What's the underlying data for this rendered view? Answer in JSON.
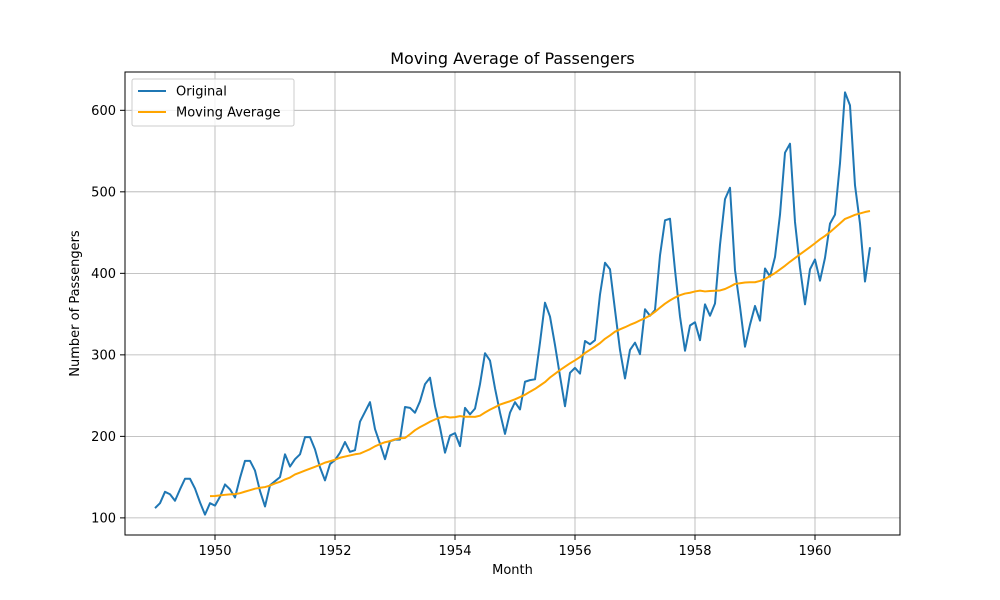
{
  "chart_data": {
    "type": "line",
    "title": "Moving Average of Passengers",
    "xlabel": "Month",
    "ylabel": "Number of Passengers",
    "x_axis": {
      "start": "1949-01",
      "end": "1960-12",
      "ticks": [
        "1950",
        "1952",
        "1954",
        "1956",
        "1958",
        "1960"
      ],
      "range": [
        "1948-07",
        "1961-06"
      ]
    },
    "y_axis": {
      "ticks": [
        100,
        200,
        300,
        400,
        500,
        600
      ],
      "range": [
        79,
        647
      ]
    },
    "grid": true,
    "legend": {
      "position": "top-left"
    },
    "series": [
      {
        "name": "Original",
        "color": "#1f77b4",
        "x": [
          "1949-01",
          "1949-02",
          "1949-03",
          "1949-04",
          "1949-05",
          "1949-06",
          "1949-07",
          "1949-08",
          "1949-09",
          "1949-10",
          "1949-11",
          "1949-12",
          "1950-01",
          "1950-02",
          "1950-03",
          "1950-04",
          "1950-05",
          "1950-06",
          "1950-07",
          "1950-08",
          "1950-09",
          "1950-10",
          "1950-11",
          "1950-12",
          "1951-01",
          "1951-02",
          "1951-03",
          "1951-04",
          "1951-05",
          "1951-06",
          "1951-07",
          "1951-08",
          "1951-09",
          "1951-10",
          "1951-11",
          "1951-12",
          "1952-01",
          "1952-02",
          "1952-03",
          "1952-04",
          "1952-05",
          "1952-06",
          "1952-07",
          "1952-08",
          "1952-09",
          "1952-10",
          "1952-11",
          "1952-12",
          "1953-01",
          "1953-02",
          "1953-03",
          "1953-04",
          "1953-05",
          "1953-06",
          "1953-07",
          "1953-08",
          "1953-09",
          "1953-10",
          "1953-11",
          "1953-12",
          "1954-01",
          "1954-02",
          "1954-03",
          "1954-04",
          "1954-05",
          "1954-06",
          "1954-07",
          "1954-08",
          "1954-09",
          "1954-10",
          "1954-11",
          "1954-12",
          "1955-01",
          "1955-02",
          "1955-03",
          "1955-04",
          "1955-05",
          "1955-06",
          "1955-07",
          "1955-08",
          "1955-09",
          "1955-10",
          "1955-11",
          "1955-12",
          "1956-01",
          "1956-02",
          "1956-03",
          "1956-04",
          "1956-05",
          "1956-06",
          "1956-07",
          "1956-08",
          "1956-09",
          "1956-10",
          "1956-11",
          "1956-12",
          "1957-01",
          "1957-02",
          "1957-03",
          "1957-04",
          "1957-05",
          "1957-06",
          "1957-07",
          "1957-08",
          "1957-09",
          "1957-10",
          "1957-11",
          "1957-12",
          "1958-01",
          "1958-02",
          "1958-03",
          "1958-04",
          "1958-05",
          "1958-06",
          "1958-07",
          "1958-08",
          "1958-09",
          "1958-10",
          "1958-11",
          "1958-12",
          "1959-01",
          "1959-02",
          "1959-03",
          "1959-04",
          "1959-05",
          "1959-06",
          "1959-07",
          "1959-08",
          "1959-09",
          "1959-10",
          "1959-11",
          "1959-12",
          "1960-01",
          "1960-02",
          "1960-03",
          "1960-04",
          "1960-05",
          "1960-06",
          "1960-07",
          "1960-08",
          "1960-09",
          "1960-10",
          "1960-11",
          "1960-12"
        ],
        "values": [
          112,
          118,
          132,
          129,
          121,
          135,
          148,
          148,
          136,
          119,
          104,
          118,
          115,
          126,
          141,
          135,
          125,
          149,
          170,
          170,
          158,
          133,
          114,
          140,
          145,
          150,
          178,
          163,
          172,
          178,
          199,
          199,
          184,
          162,
          146,
          166,
          171,
          180,
          193,
          181,
          183,
          218,
          230,
          242,
          209,
          191,
          172,
          194,
          196,
          196,
          236,
          235,
          229,
          243,
          264,
          272,
          237,
          211,
          180,
          201,
          204,
          188,
          235,
          227,
          234,
          264,
          302,
          293,
          259,
          229,
          203,
          229,
          242,
          233,
          267,
          269,
          270,
          315,
          364,
          347,
          312,
          274,
          237,
          278,
          284,
          277,
          317,
          313,
          318,
          374,
          413,
          405,
          355,
          306,
          271,
          306,
          315,
          301,
          356,
          348,
          355,
          422,
          465,
          467,
          404,
          347,
          305,
          336,
          340,
          318,
          362,
          348,
          363,
          435,
          491,
          505,
          404,
          359,
          310,
          337,
          360,
          342,
          406,
          396,
          420,
          472,
          548,
          559,
          463,
          407,
          362,
          405,
          417,
          391,
          419,
          461,
          472,
          535,
          622,
          606,
          508,
          461,
          390,
          432
        ]
      },
      {
        "name": "Moving Average",
        "color": "#ffa500",
        "x": [
          "1949-12",
          "1950-01",
          "1950-02",
          "1950-03",
          "1950-04",
          "1950-05",
          "1950-06",
          "1950-07",
          "1950-08",
          "1950-09",
          "1950-10",
          "1950-11",
          "1950-12",
          "1951-01",
          "1951-02",
          "1951-03",
          "1951-04",
          "1951-05",
          "1951-06",
          "1951-07",
          "1951-08",
          "1951-09",
          "1951-10",
          "1951-11",
          "1951-12",
          "1952-01",
          "1952-02",
          "1952-03",
          "1952-04",
          "1952-05",
          "1952-06",
          "1952-07",
          "1952-08",
          "1952-09",
          "1952-10",
          "1952-11",
          "1952-12",
          "1953-01",
          "1953-02",
          "1953-03",
          "1953-04",
          "1953-05",
          "1953-06",
          "1953-07",
          "1953-08",
          "1953-09",
          "1953-10",
          "1953-11",
          "1953-12",
          "1954-01",
          "1954-02",
          "1954-03",
          "1954-04",
          "1954-05",
          "1954-06",
          "1954-07",
          "1954-08",
          "1954-09",
          "1954-10",
          "1954-11",
          "1954-12",
          "1955-01",
          "1955-02",
          "1955-03",
          "1955-04",
          "1955-05",
          "1955-06",
          "1955-07",
          "1955-08",
          "1955-09",
          "1955-10",
          "1955-11",
          "1955-12",
          "1956-01",
          "1956-02",
          "1956-03",
          "1956-04",
          "1956-05",
          "1956-06",
          "1956-07",
          "1956-08",
          "1956-09",
          "1956-10",
          "1956-11",
          "1956-12",
          "1957-01",
          "1957-02",
          "1957-03",
          "1957-04",
          "1957-05",
          "1957-06",
          "1957-07",
          "1957-08",
          "1957-09",
          "1957-10",
          "1957-11",
          "1957-12",
          "1958-01",
          "1958-02",
          "1958-03",
          "1958-04",
          "1958-05",
          "1958-06",
          "1958-07",
          "1958-08",
          "1958-09",
          "1958-10",
          "1958-11",
          "1958-12",
          "1959-01",
          "1959-02",
          "1959-03",
          "1959-04",
          "1959-05",
          "1959-06",
          "1959-07",
          "1959-08",
          "1959-09",
          "1959-10",
          "1959-11",
          "1959-12",
          "1960-01",
          "1960-02",
          "1960-03",
          "1960-04",
          "1960-05",
          "1960-06",
          "1960-07",
          "1960-08",
          "1960-09",
          "1960-10",
          "1960-11",
          "1960-12"
        ],
        "values": [
          126.7,
          126.9,
          127.6,
          128.3,
          128.8,
          129.2,
          130.3,
          132.2,
          134.0,
          135.8,
          136.9,
          137.8,
          139.7,
          142.2,
          144.2,
          147.2,
          149.5,
          153.3,
          155.6,
          158.0,
          160.4,
          162.7,
          165.1,
          167.8,
          169.5,
          171.3,
          173.8,
          175.2,
          176.6,
          178.0,
          178.9,
          181.6,
          184.3,
          187.8,
          190.5,
          192.8,
          194.2,
          196.3,
          197.7,
          198.0,
          202.6,
          207.6,
          211.3,
          214.5,
          218.0,
          220.7,
          223.0,
          224.3,
          223.1,
          223.6,
          224.8,
          224.1,
          224.0,
          223.9,
          225.4,
          229.3,
          232.8,
          235.8,
          239.0,
          241.1,
          243.1,
          245.5,
          248.2,
          251.1,
          254.8,
          258.2,
          262.4,
          266.6,
          272.2,
          276.8,
          281.3,
          285.5,
          289.6,
          293.3,
          297.3,
          302.3,
          306.2,
          310.1,
          314.4,
          319.7,
          323.8,
          328.4,
          331.3,
          333.9,
          336.8,
          339.3,
          342.3,
          345.0,
          348.3,
          352.8,
          357.9,
          362.8,
          366.8,
          370.3,
          373.2,
          375.2,
          376.2,
          377.8,
          378.8,
          377.8,
          378.3,
          378.6,
          379.0,
          380.8,
          383.7,
          387.0,
          387.8,
          388.8,
          389.0,
          389.1,
          390.7,
          393.1,
          396.8,
          400.3,
          404.8,
          409.3,
          414.2,
          418.7,
          423.3,
          427.8,
          432.3,
          436.9,
          441.7,
          445.9,
          450.6,
          455.9,
          461.3,
          466.8,
          469.2,
          471.8,
          473.5,
          475.2,
          476.5
        ]
      }
    ]
  }
}
